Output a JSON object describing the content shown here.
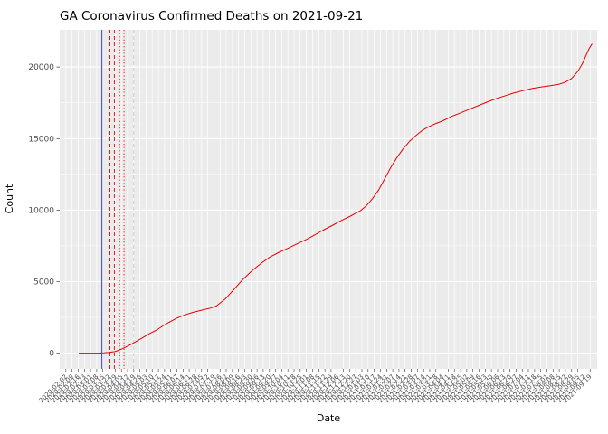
{
  "chart_data": {
    "type": "line",
    "title": "GA Coronavirus Confirmed Deaths on 2021-09-21",
    "xlabel": "Date",
    "ylabel": "Count",
    "panel_bg": "#ebebeb",
    "grid_color": "#ffffff",
    "axis_text_color": "#4d4d4d",
    "tick_mark_color": "#333333",
    "x_domain": [
      "2020-01-26",
      "2021-09-27"
    ],
    "ylim": [
      -1100,
      22600
    ],
    "y_ticks": [
      0,
      5000,
      10000,
      15000,
      20000
    ],
    "y_minor_gridlines": [
      2500,
      7500,
      12500,
      17500
    ],
    "x_ticks": [
      "2020-02-02",
      "2020-02-09",
      "2020-02-16",
      "2020-02-23",
      "2020-03-01",
      "2020-03-08",
      "2020-03-15",
      "2020-03-22",
      "2020-03-29",
      "2020-04-05",
      "2020-04-12",
      "2020-04-19",
      "2020-04-26",
      "2020-05-03",
      "2020-05-10",
      "2020-05-17",
      "2020-05-24",
      "2020-05-31",
      "2020-06-07",
      "2020-06-14",
      "2020-06-21",
      "2020-06-28",
      "2020-07-05",
      "2020-07-12",
      "2020-07-19",
      "2020-07-26",
      "2020-08-02",
      "2020-08-09",
      "2020-08-16",
      "2020-08-23",
      "2020-08-30",
      "2020-09-06",
      "2020-09-13",
      "2020-09-20",
      "2020-09-27",
      "2020-10-04",
      "2020-10-11",
      "2020-10-18",
      "2020-10-25",
      "2020-11-01",
      "2020-11-08",
      "2020-11-15",
      "2020-11-22",
      "2020-11-29",
      "2020-12-06",
      "2020-12-13",
      "2020-12-20",
      "2020-12-27",
      "2021-01-03",
      "2021-01-10",
      "2021-01-17",
      "2021-01-24",
      "2021-01-31",
      "2021-02-07",
      "2021-02-14",
      "2021-02-21",
      "2021-02-28",
      "2021-03-07",
      "2021-03-14",
      "2021-03-21",
      "2021-03-28",
      "2021-04-04",
      "2021-04-11",
      "2021-04-18",
      "2021-04-25",
      "2021-05-02",
      "2021-05-09",
      "2021-05-16",
      "2021-05-23",
      "2021-05-30",
      "2021-06-06",
      "2021-06-13",
      "2021-06-20",
      "2021-06-27",
      "2021-07-04",
      "2021-07-11",
      "2021-07-18",
      "2021-07-25",
      "2021-08-01",
      "2021-08-08",
      "2021-08-15",
      "2021-08-22",
      "2021-08-29",
      "2021-09-05",
      "2021-09-12",
      "2021-09-19"
    ],
    "vlines": [
      {
        "x": "2020-03-14",
        "color": "#2222dd",
        "style": "solid"
      },
      {
        "x": "2020-03-23",
        "color": "#e50000",
        "style": "dashed"
      },
      {
        "x": "2020-03-28",
        "color": "#e50000",
        "style": "dashed"
      },
      {
        "x": "2020-04-03",
        "color": "#e50000",
        "style": "dotted"
      },
      {
        "x": "2020-04-08",
        "color": "#e50000",
        "style": "dotted"
      },
      {
        "x": "2020-04-19",
        "color": "#c9c9c9",
        "style": "dashed"
      },
      {
        "x": "2020-04-24",
        "color": "#c9c9c9",
        "style": "dashed"
      }
    ],
    "series": [
      {
        "name": "confirmed-deaths",
        "color": "#e50000",
        "points": [
          [
            "2020-02-17",
            0
          ],
          [
            "2020-03-01",
            1
          ],
          [
            "2020-03-10",
            8
          ],
          [
            "2020-03-16",
            20
          ],
          [
            "2020-03-22",
            50
          ],
          [
            "2020-03-28",
            100
          ],
          [
            "2020-04-03",
            220
          ],
          [
            "2020-04-10",
            420
          ],
          [
            "2020-04-17",
            650
          ],
          [
            "2020-04-24",
            900
          ],
          [
            "2020-05-01",
            1150
          ],
          [
            "2020-05-08",
            1400
          ],
          [
            "2020-05-15",
            1620
          ],
          [
            "2020-05-22",
            1900
          ],
          [
            "2020-05-29",
            2150
          ],
          [
            "2020-06-07",
            2450
          ],
          [
            "2020-06-15",
            2650
          ],
          [
            "2020-06-25",
            2850
          ],
          [
            "2020-07-05",
            3000
          ],
          [
            "2020-07-15",
            3150
          ],
          [
            "2020-07-22",
            3300
          ],
          [
            "2020-08-01",
            3800
          ],
          [
            "2020-08-10",
            4400
          ],
          [
            "2020-08-20",
            5100
          ],
          [
            "2020-09-01",
            5800
          ],
          [
            "2020-09-10",
            6250
          ],
          [
            "2020-09-20",
            6700
          ],
          [
            "2020-10-01",
            7050
          ],
          [
            "2020-10-10",
            7300
          ],
          [
            "2020-10-20",
            7600
          ],
          [
            "2020-11-01",
            7950
          ],
          [
            "2020-11-10",
            8250
          ],
          [
            "2020-11-20",
            8600
          ],
          [
            "2020-12-01",
            8950
          ],
          [
            "2020-12-10",
            9250
          ],
          [
            "2020-12-20",
            9550
          ],
          [
            "2021-01-01",
            9950
          ],
          [
            "2021-01-08",
            10300
          ],
          [
            "2021-01-15",
            10800
          ],
          [
            "2021-01-22",
            11400
          ],
          [
            "2021-01-29",
            12200
          ],
          [
            "2021-02-05",
            13000
          ],
          [
            "2021-02-12",
            13700
          ],
          [
            "2021-02-19",
            14300
          ],
          [
            "2021-02-26",
            14800
          ],
          [
            "2021-03-05",
            15200
          ],
          [
            "2021-03-12",
            15550
          ],
          [
            "2021-03-19",
            15800
          ],
          [
            "2021-03-26",
            16000
          ],
          [
            "2021-04-05",
            16250
          ],
          [
            "2021-04-15",
            16550
          ],
          [
            "2021-04-25",
            16800
          ],
          [
            "2021-05-05",
            17050
          ],
          [
            "2021-05-15",
            17300
          ],
          [
            "2021-05-25",
            17550
          ],
          [
            "2021-06-05",
            17800
          ],
          [
            "2021-06-15",
            18000
          ],
          [
            "2021-06-25",
            18200
          ],
          [
            "2021-07-05",
            18350
          ],
          [
            "2021-07-15",
            18500
          ],
          [
            "2021-07-25",
            18600
          ],
          [
            "2021-08-05",
            18700
          ],
          [
            "2021-08-15",
            18800
          ],
          [
            "2021-08-22",
            18950
          ],
          [
            "2021-08-29",
            19200
          ],
          [
            "2021-09-05",
            19700
          ],
          [
            "2021-09-10",
            20200
          ],
          [
            "2021-09-15",
            20900
          ],
          [
            "2021-09-18",
            21300
          ],
          [
            "2021-09-21",
            21600
          ]
        ]
      }
    ]
  }
}
